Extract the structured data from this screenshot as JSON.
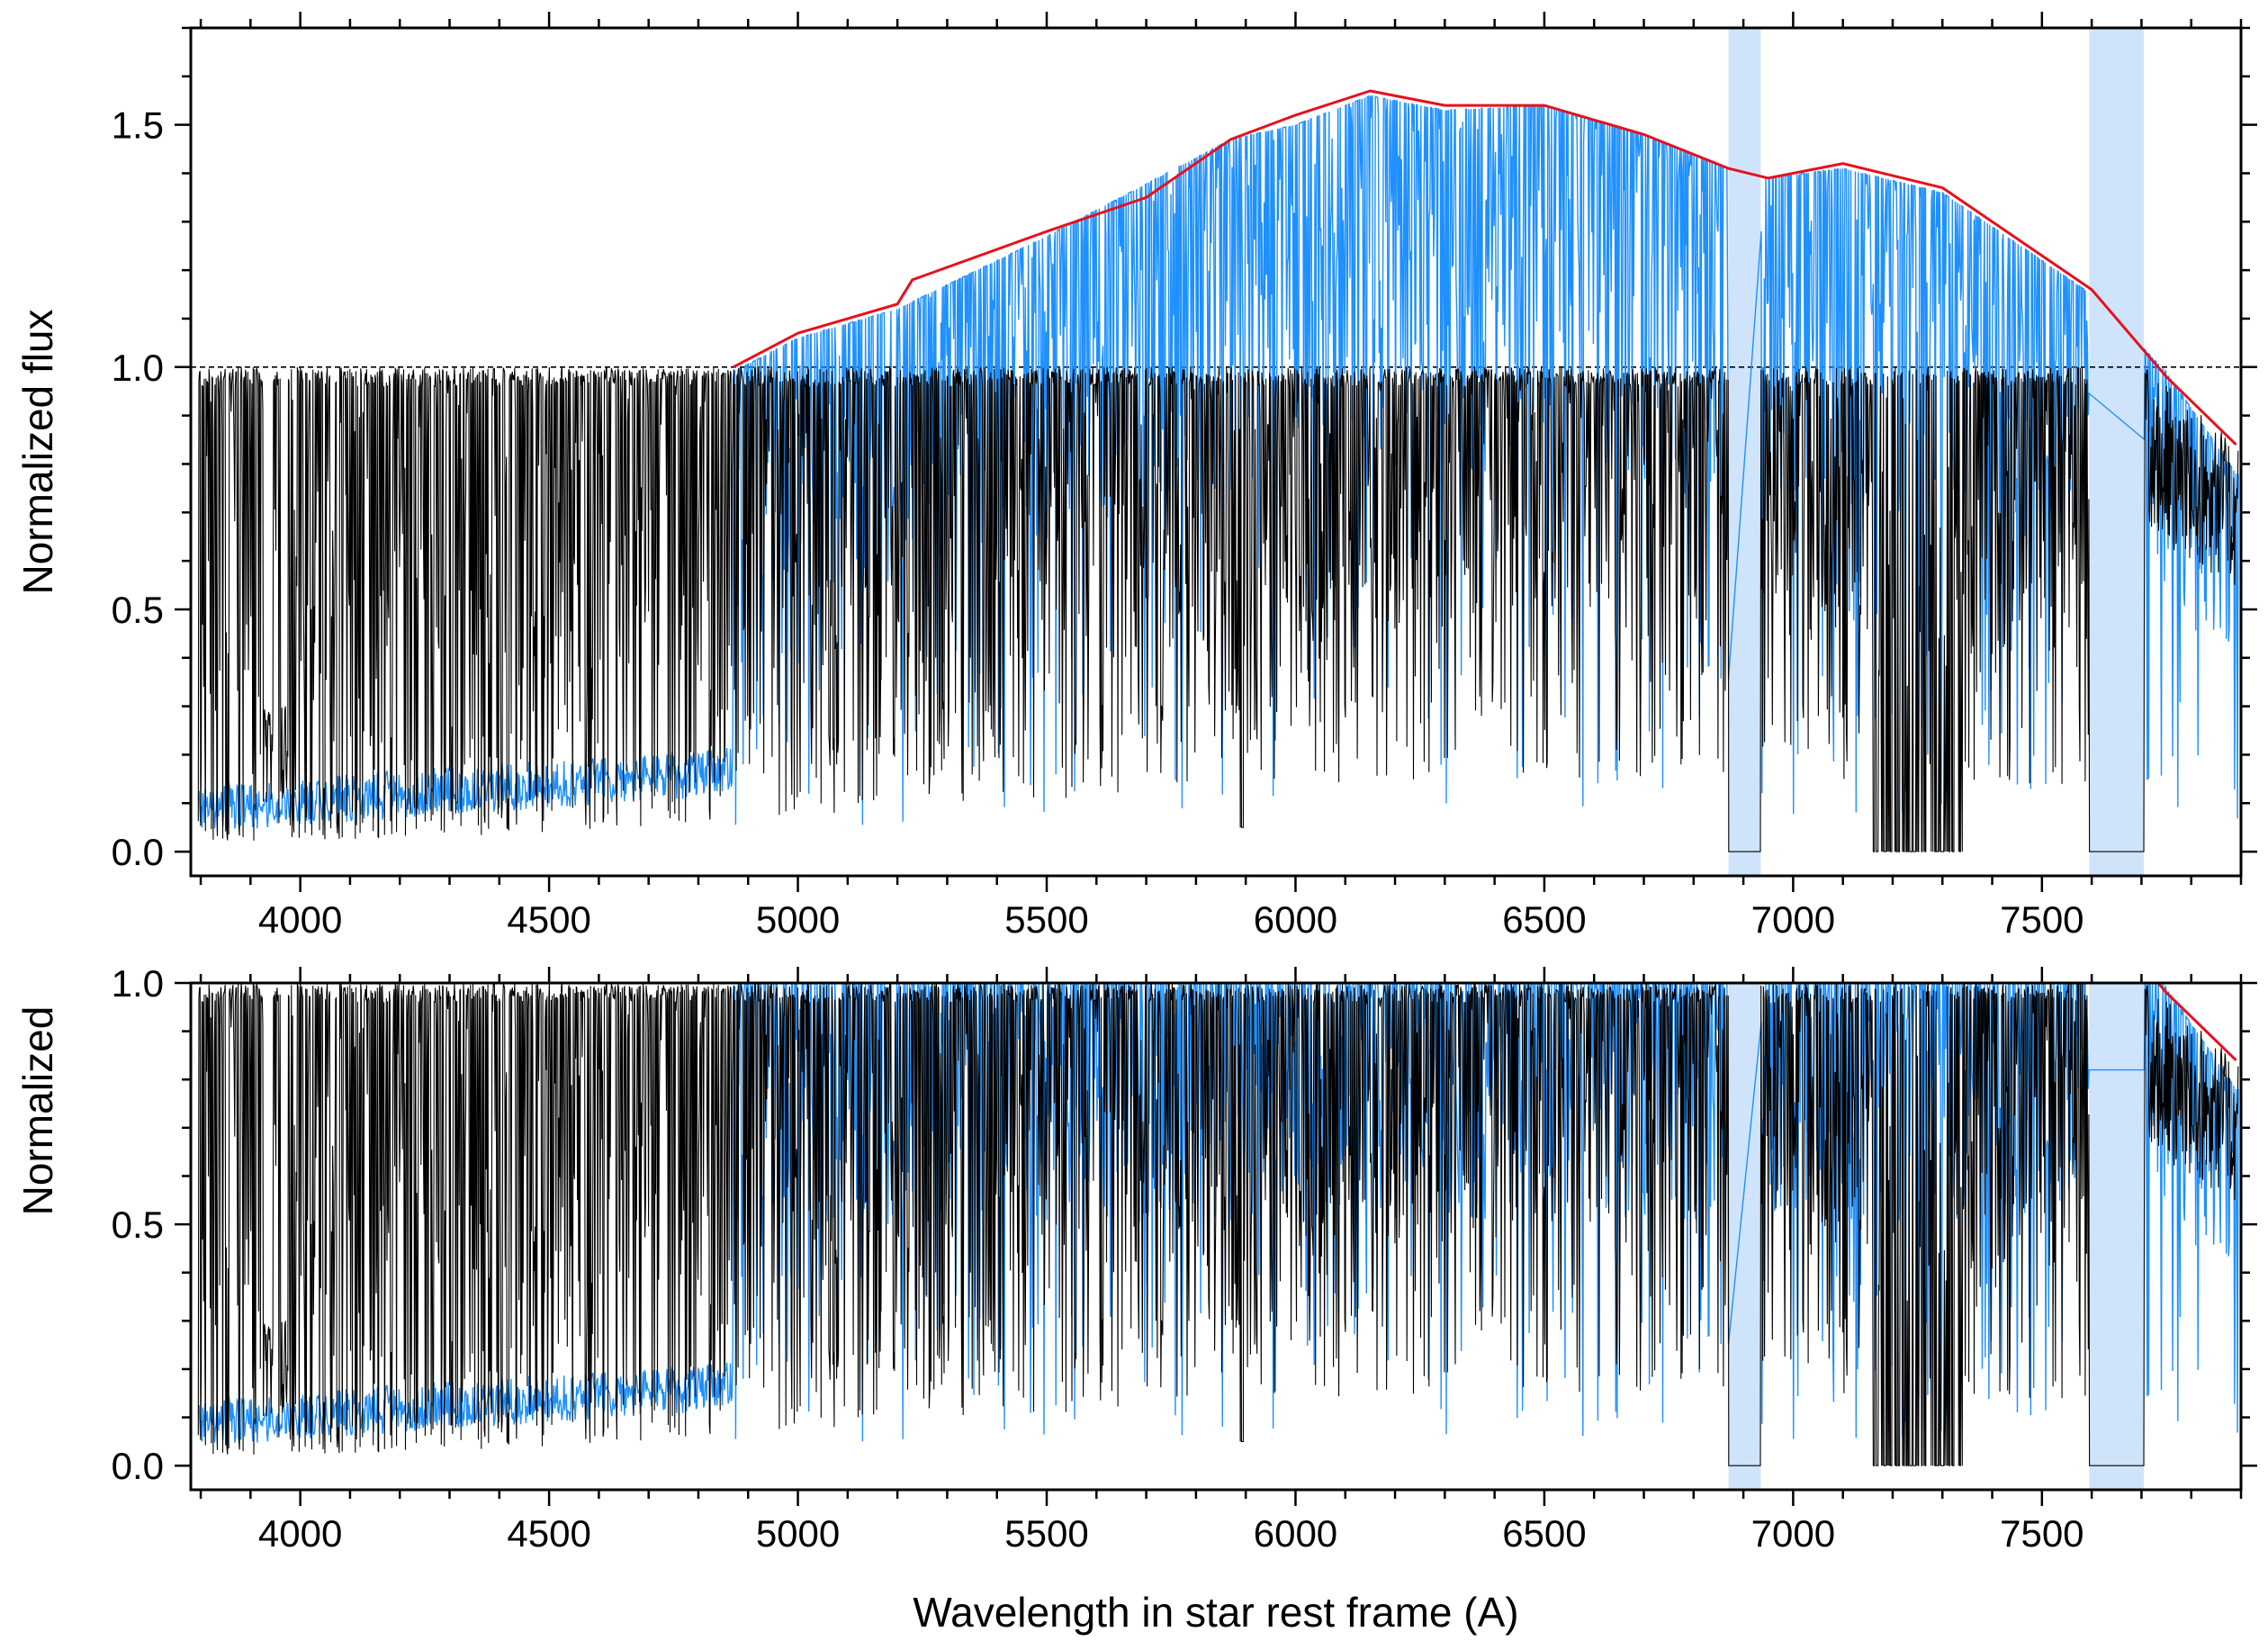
{
  "chart_data": [
    {
      "type": "line",
      "panel": "top",
      "title": "",
      "xlabel": "",
      "ylabel": "Normalized flux",
      "xlim": [
        3780,
        7900
      ],
      "ylim": [
        -0.05,
        1.7
      ],
      "grid": false,
      "x_ticks": [
        "4000",
        "4500",
        "5000",
        "5500",
        "6000",
        "6500",
        "7000",
        "7500"
      ],
      "y_ticks": [
        "0.0",
        "0.5",
        "1.0",
        "1.5"
      ],
      "reference_line": {
        "y": 1.0,
        "style": "dashed"
      },
      "masked_regions": [
        [
          6870,
          6935
        ],
        [
          7595,
          7705
        ]
      ],
      "series": [
        {
          "role": "observed flux",
          "color": "#1e90ff",
          "continuum_x": [
            3800,
            4000,
            4500,
            4870,
            5000,
            5200,
            5500,
            5870,
            6000,
            6150,
            6300,
            6500,
            6700,
            6870,
            6950,
            7100,
            7300,
            7600,
            7750,
            7890
          ],
          "continuum_y": [
            0.05,
            0.06,
            0.12,
            0.99,
            1.06,
            1.12,
            1.27,
            1.47,
            1.5,
            1.56,
            1.53,
            1.54,
            1.48,
            1.41,
            1.39,
            1.41,
            1.36,
            1.15,
            0.99,
            0.78
          ]
        },
        {
          "role": "continuum fit",
          "color": "#e8101c",
          "x": [
            4870,
            5000,
            5200,
            5230,
            5500,
            5700,
            5870,
            6000,
            6150,
            6300,
            6500,
            6700,
            6870,
            6950,
            7100,
            7300,
            7600,
            7750,
            7890
          ],
          "y": [
            1.0,
            1.07,
            1.13,
            1.18,
            1.28,
            1.35,
            1.47,
            1.52,
            1.57,
            1.54,
            1.54,
            1.48,
            1.41,
            1.39,
            1.42,
            1.37,
            1.16,
            0.98,
            0.84
          ]
        },
        {
          "role": "normalized spectrum",
          "color": "#000000",
          "lower_envelope_x": [
            3800,
            4000,
            4500,
            5000,
            5500,
            6000,
            6500,
            7000,
            7500,
            7890
          ],
          "lower_envelope_y": [
            0.05,
            0.08,
            0.12,
            0.25,
            0.35,
            0.45,
            0.5,
            0.5,
            0.45,
            0.5
          ]
        }
      ]
    },
    {
      "type": "line",
      "panel": "bottom",
      "title": "",
      "xlabel": "Wavelength in star rest frame (A)",
      "ylabel": "Normalized",
      "xlim": [
        3780,
        7900
      ],
      "ylim": [
        -0.05,
        1.0
      ],
      "grid": false,
      "x_ticks": [
        "4000",
        "4500",
        "5000",
        "5500",
        "6000",
        "6500",
        "7000",
        "7500"
      ],
      "y_ticks": [
        "0.0",
        "0.5",
        "1.0"
      ],
      "masked_regions": [
        [
          6870,
          6935
        ],
        [
          7595,
          7705
        ]
      ],
      "series": [
        {
          "role": "normalized spectrum",
          "color": "#000000"
        },
        {
          "role": "observed flux",
          "color": "#1e90ff"
        },
        {
          "role": "continuum fit",
          "color": "#e8101c"
        }
      ]
    }
  ]
}
